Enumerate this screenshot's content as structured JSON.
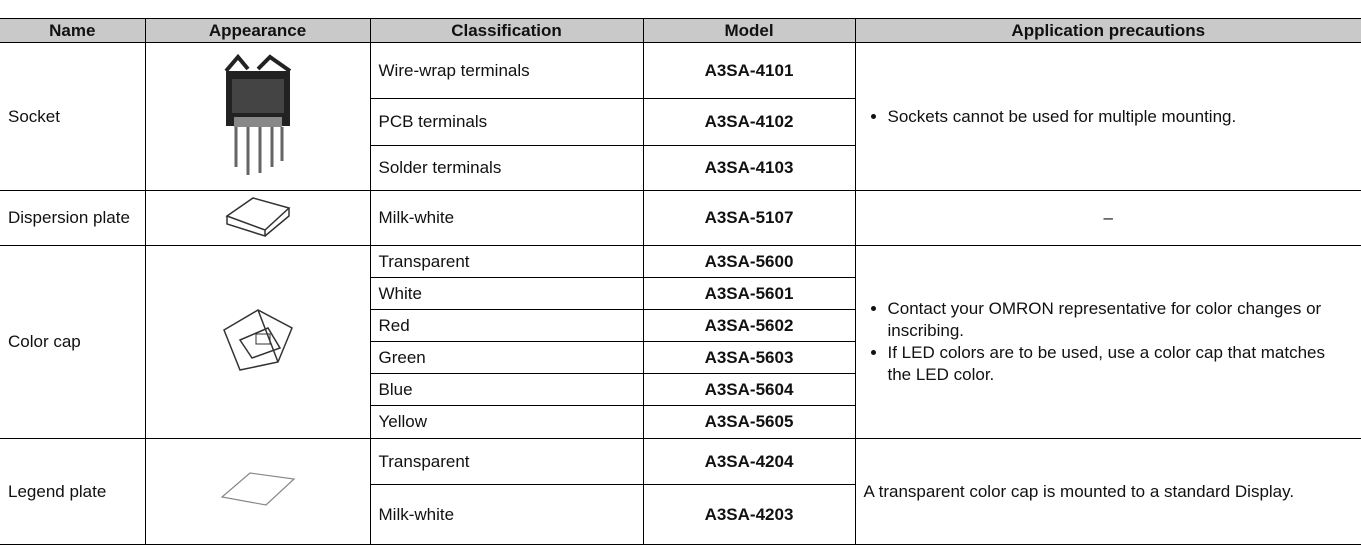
{
  "table": {
    "header": [
      "Name",
      "Appearance",
      "Classification",
      "Model",
      "Application precautions"
    ],
    "rows": [
      {
        "name": "Socket",
        "items": [
          {
            "classification": "Wire-wrap terminals",
            "model": "A3SA-4101"
          },
          {
            "classification": "PCB terminals",
            "model": "A3SA-4102"
          },
          {
            "classification": "Solder terminals",
            "model": "A3SA-4103"
          }
        ],
        "precautions": {
          "bullets": [
            "Sockets cannot be used for multiple mounting."
          ]
        }
      },
      {
        "name": "Dispersion plate",
        "items": [
          {
            "classification": "Milk-white",
            "model": "A3SA-5107"
          }
        ],
        "precautions": {
          "text": "–"
        }
      },
      {
        "name": "Color cap",
        "items": [
          {
            "classification": "Transparent",
            "model": "A3SA-5600"
          },
          {
            "classification": "White",
            "model": "A3SA-5601"
          },
          {
            "classification": "Red",
            "model": "A3SA-5602"
          },
          {
            "classification": "Green",
            "model": "A3SA-5603"
          },
          {
            "classification": "Blue",
            "model": "A3SA-5604"
          },
          {
            "classification": "Yellow",
            "model": "A3SA-5605"
          }
        ],
        "precautions": {
          "bullets": [
            "Contact your OMRON representative for color changes or inscribing.",
            "If LED colors are to be used, use a color cap that matches the LED color."
          ]
        }
      },
      {
        "name": "Legend plate",
        "items": [
          {
            "classification": "Transparent",
            "model": "A3SA-4204"
          },
          {
            "classification": "Milk-white",
            "model": "A3SA-4203"
          }
        ],
        "precautions": {
          "text": "A transparent color cap is mounted to a standard Display."
        }
      }
    ]
  }
}
